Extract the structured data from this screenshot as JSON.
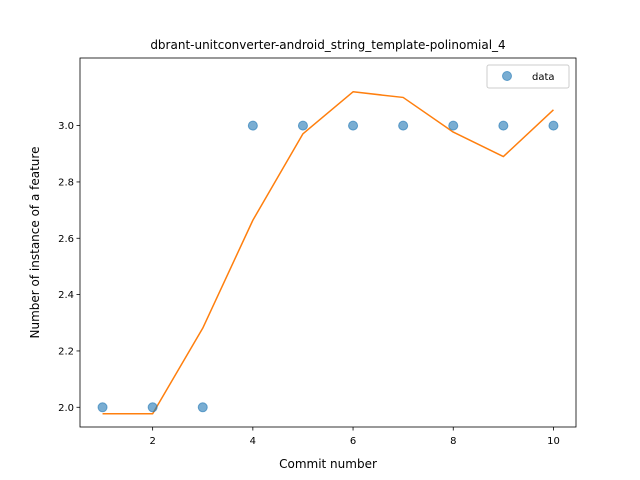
{
  "chart_data": {
    "type": "scatter",
    "title": "dbrant-unitconverter-android_string_template-polinomial_4",
    "xlabel": "Commit number",
    "ylabel": "Number of instance of a feature",
    "xlim": [
      0.55,
      10.45
    ],
    "ylim": [
      1.93,
      3.24
    ],
    "x_ticks": [
      2,
      4,
      6,
      8,
      10
    ],
    "y_ticks": [
      2.0,
      2.2,
      2.4,
      2.6,
      2.8,
      3.0
    ],
    "x_tick_labels": [
      "2",
      "4",
      "6",
      "8",
      "10"
    ],
    "y_tick_labels": [
      "2.0",
      "2.2",
      "2.4",
      "2.6",
      "2.8",
      "3.0"
    ],
    "legend_placement": "top-right",
    "series": [
      {
        "name": "data",
        "kind": "scatter",
        "color": "#1f77b4",
        "x": [
          1,
          2,
          3,
          4,
          5,
          6,
          7,
          8,
          9,
          10
        ],
        "y": [
          2.0,
          2.0,
          2.0,
          3.0,
          3.0,
          3.0,
          3.0,
          3.0,
          3.0,
          3.0
        ]
      },
      {
        "kind": "line",
        "color": "#ff7f0e",
        "x": [
          1,
          2,
          3,
          4,
          5,
          6,
          7,
          8,
          9,
          10
        ],
        "y": [
          1.977,
          1.977,
          2.281,
          2.664,
          2.971,
          3.12,
          3.1,
          2.977,
          2.89,
          3.056
        ]
      }
    ]
  }
}
